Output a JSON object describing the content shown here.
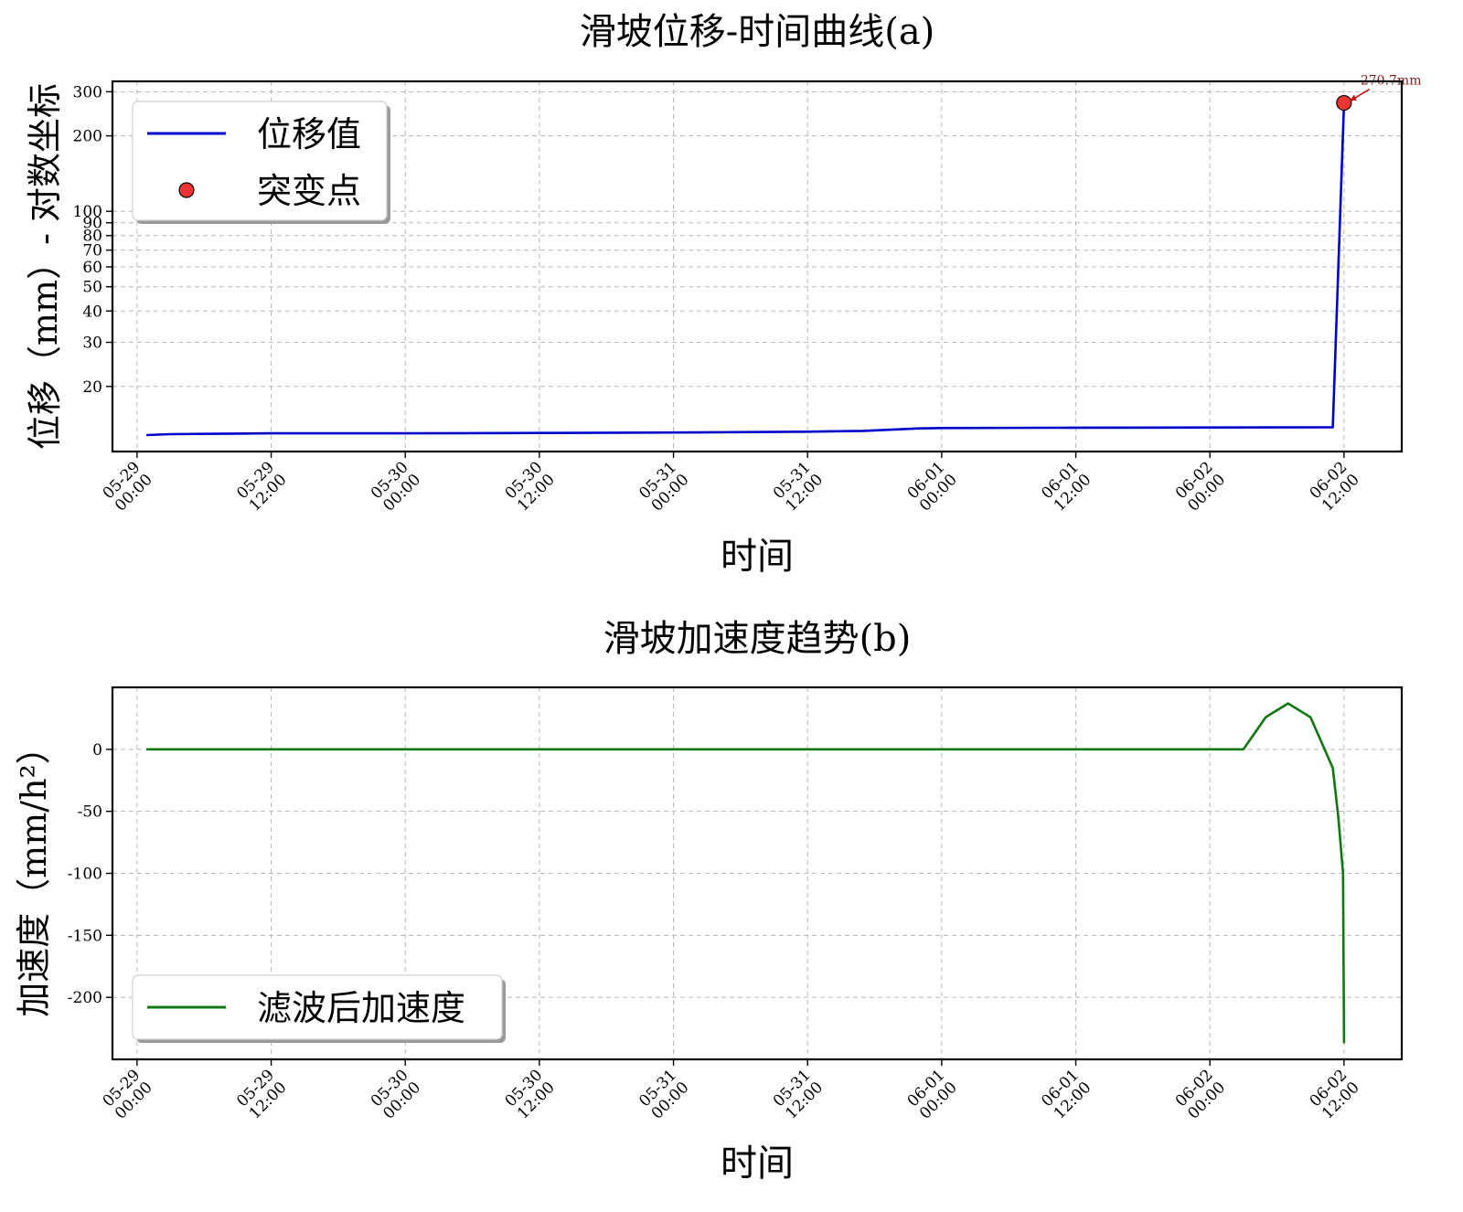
{
  "chart_data": [
    {
      "type": "line",
      "title": "滑坡位移-时间曲线(a)",
      "xlabel": "时间",
      "ylabel": "位移（mm）- 对数坐标",
      "yscale": "log",
      "ylim": [
        11,
        330
      ],
      "xlim": [
        "05-28 21:48",
        "06-02 17:10"
      ],
      "yticks": [
        20,
        30,
        40,
        50,
        60,
        70,
        80,
        90,
        100,
        200,
        300
      ],
      "xticks": [
        {
          "at": "05-29 00:00",
          "label": [
            "05-29",
            "00:00"
          ]
        },
        {
          "at": "05-29 12:00",
          "label": [
            "05-29",
            "12:00"
          ]
        },
        {
          "at": "05-30 00:00",
          "label": [
            "05-30",
            "00:00"
          ]
        },
        {
          "at": "05-30 12:00",
          "label": [
            "05-30",
            "12:00"
          ]
        },
        {
          "at": "05-31 00:00",
          "label": [
            "05-31",
            "00:00"
          ]
        },
        {
          "at": "05-31 12:00",
          "label": [
            "05-31",
            "12:00"
          ]
        },
        {
          "at": "06-01 00:00",
          "label": [
            "06-01",
            "00:00"
          ]
        },
        {
          "at": "06-01 12:00",
          "label": [
            "06-01",
            "12:00"
          ]
        },
        {
          "at": "06-02 00:00",
          "label": [
            "06-02",
            "00:00"
          ]
        },
        {
          "at": "06-02 12:00",
          "label": [
            "06-02",
            "12:00"
          ]
        }
      ],
      "grid": true,
      "legend": "upper left",
      "series": [
        {
          "name": "位移值",
          "color": "#0000cc",
          "kind": "line",
          "points": [
            {
              "t": "05-29 00:50",
              "v": 12.8
            },
            {
              "t": "05-29 03:00",
              "v": 12.9
            },
            {
              "t": "05-29 07:00",
              "v": 12.95
            },
            {
              "t": "05-29 12:00",
              "v": 13.0
            },
            {
              "t": "05-30 00:00",
              "v": 13.0
            },
            {
              "t": "05-30 12:00",
              "v": 13.05
            },
            {
              "t": "05-31 00:00",
              "v": 13.1
            },
            {
              "t": "05-31 12:00",
              "v": 13.2
            },
            {
              "t": "05-31 17:00",
              "v": 13.3
            },
            {
              "t": "05-31 22:00",
              "v": 13.6
            },
            {
              "t": "06-01 00:00",
              "v": 13.65
            },
            {
              "t": "06-01 12:00",
              "v": 13.7
            },
            {
              "t": "06-02 00:00",
              "v": 13.72
            },
            {
              "t": "06-02 11:00",
              "v": 13.75
            },
            {
              "t": "06-02 12:00",
              "v": 270.7
            }
          ]
        },
        {
          "name": "突变点",
          "color": "#ee3333",
          "kind": "marker",
          "points": [
            {
              "t": "06-02 12:00",
              "v": 270.7
            }
          ]
        }
      ],
      "annotations": [
        {
          "text": "270.7mm",
          "at": {
            "t": "06-02 12:00",
            "v": 270.7
          },
          "color": "#8b1a1a"
        }
      ]
    },
    {
      "type": "line",
      "title": "滑坡加速度趋势(b)",
      "xlabel": "时间",
      "ylabel": "加速度（mm/h²）",
      "yscale": "linear",
      "ylim": [
        -250,
        50
      ],
      "xlim": [
        "05-28 21:48",
        "06-02 17:10"
      ],
      "yticks": [
        0,
        -50,
        -100,
        -150,
        -200
      ],
      "xticks": [
        {
          "at": "05-29 00:00",
          "label": [
            "05-29",
            "00:00"
          ]
        },
        {
          "at": "05-29 12:00",
          "label": [
            "05-29",
            "12:00"
          ]
        },
        {
          "at": "05-30 00:00",
          "label": [
            "05-30",
            "00:00"
          ]
        },
        {
          "at": "05-30 12:00",
          "label": [
            "05-30",
            "12:00"
          ]
        },
        {
          "at": "05-31 00:00",
          "label": [
            "05-31",
            "00:00"
          ]
        },
        {
          "at": "05-31 12:00",
          "label": [
            "05-31",
            "12:00"
          ]
        },
        {
          "at": "06-01 00:00",
          "label": [
            "06-01",
            "00:00"
          ]
        },
        {
          "at": "06-01 12:00",
          "label": [
            "06-01",
            "12:00"
          ]
        },
        {
          "at": "06-02 00:00",
          "label": [
            "06-02",
            "00:00"
          ]
        },
        {
          "at": "06-02 12:00",
          "label": [
            "06-02",
            "12:00"
          ]
        }
      ],
      "grid": true,
      "legend": "lower left",
      "series": [
        {
          "name": "滤波后加速度",
          "color": "#117711",
          "kind": "line",
          "points": [
            {
              "t": "05-29 00:50",
              "v": 0
            },
            {
              "t": "06-02 00:50",
              "v": 0
            },
            {
              "t": "06-02 03:00",
              "v": 0
            },
            {
              "t": "06-02 05:00",
              "v": 26
            },
            {
              "t": "06-02 07:00",
              "v": 37
            },
            {
              "t": "06-02 09:00",
              "v": 26
            },
            {
              "t": "06-02 11:00",
              "v": -15
            },
            {
              "t": "06-02 11:30",
              "v": -55
            },
            {
              "t": "06-02 11:55",
              "v": -100
            },
            {
              "t": "06-02 12:00",
              "v": -237
            }
          ]
        }
      ]
    }
  ]
}
